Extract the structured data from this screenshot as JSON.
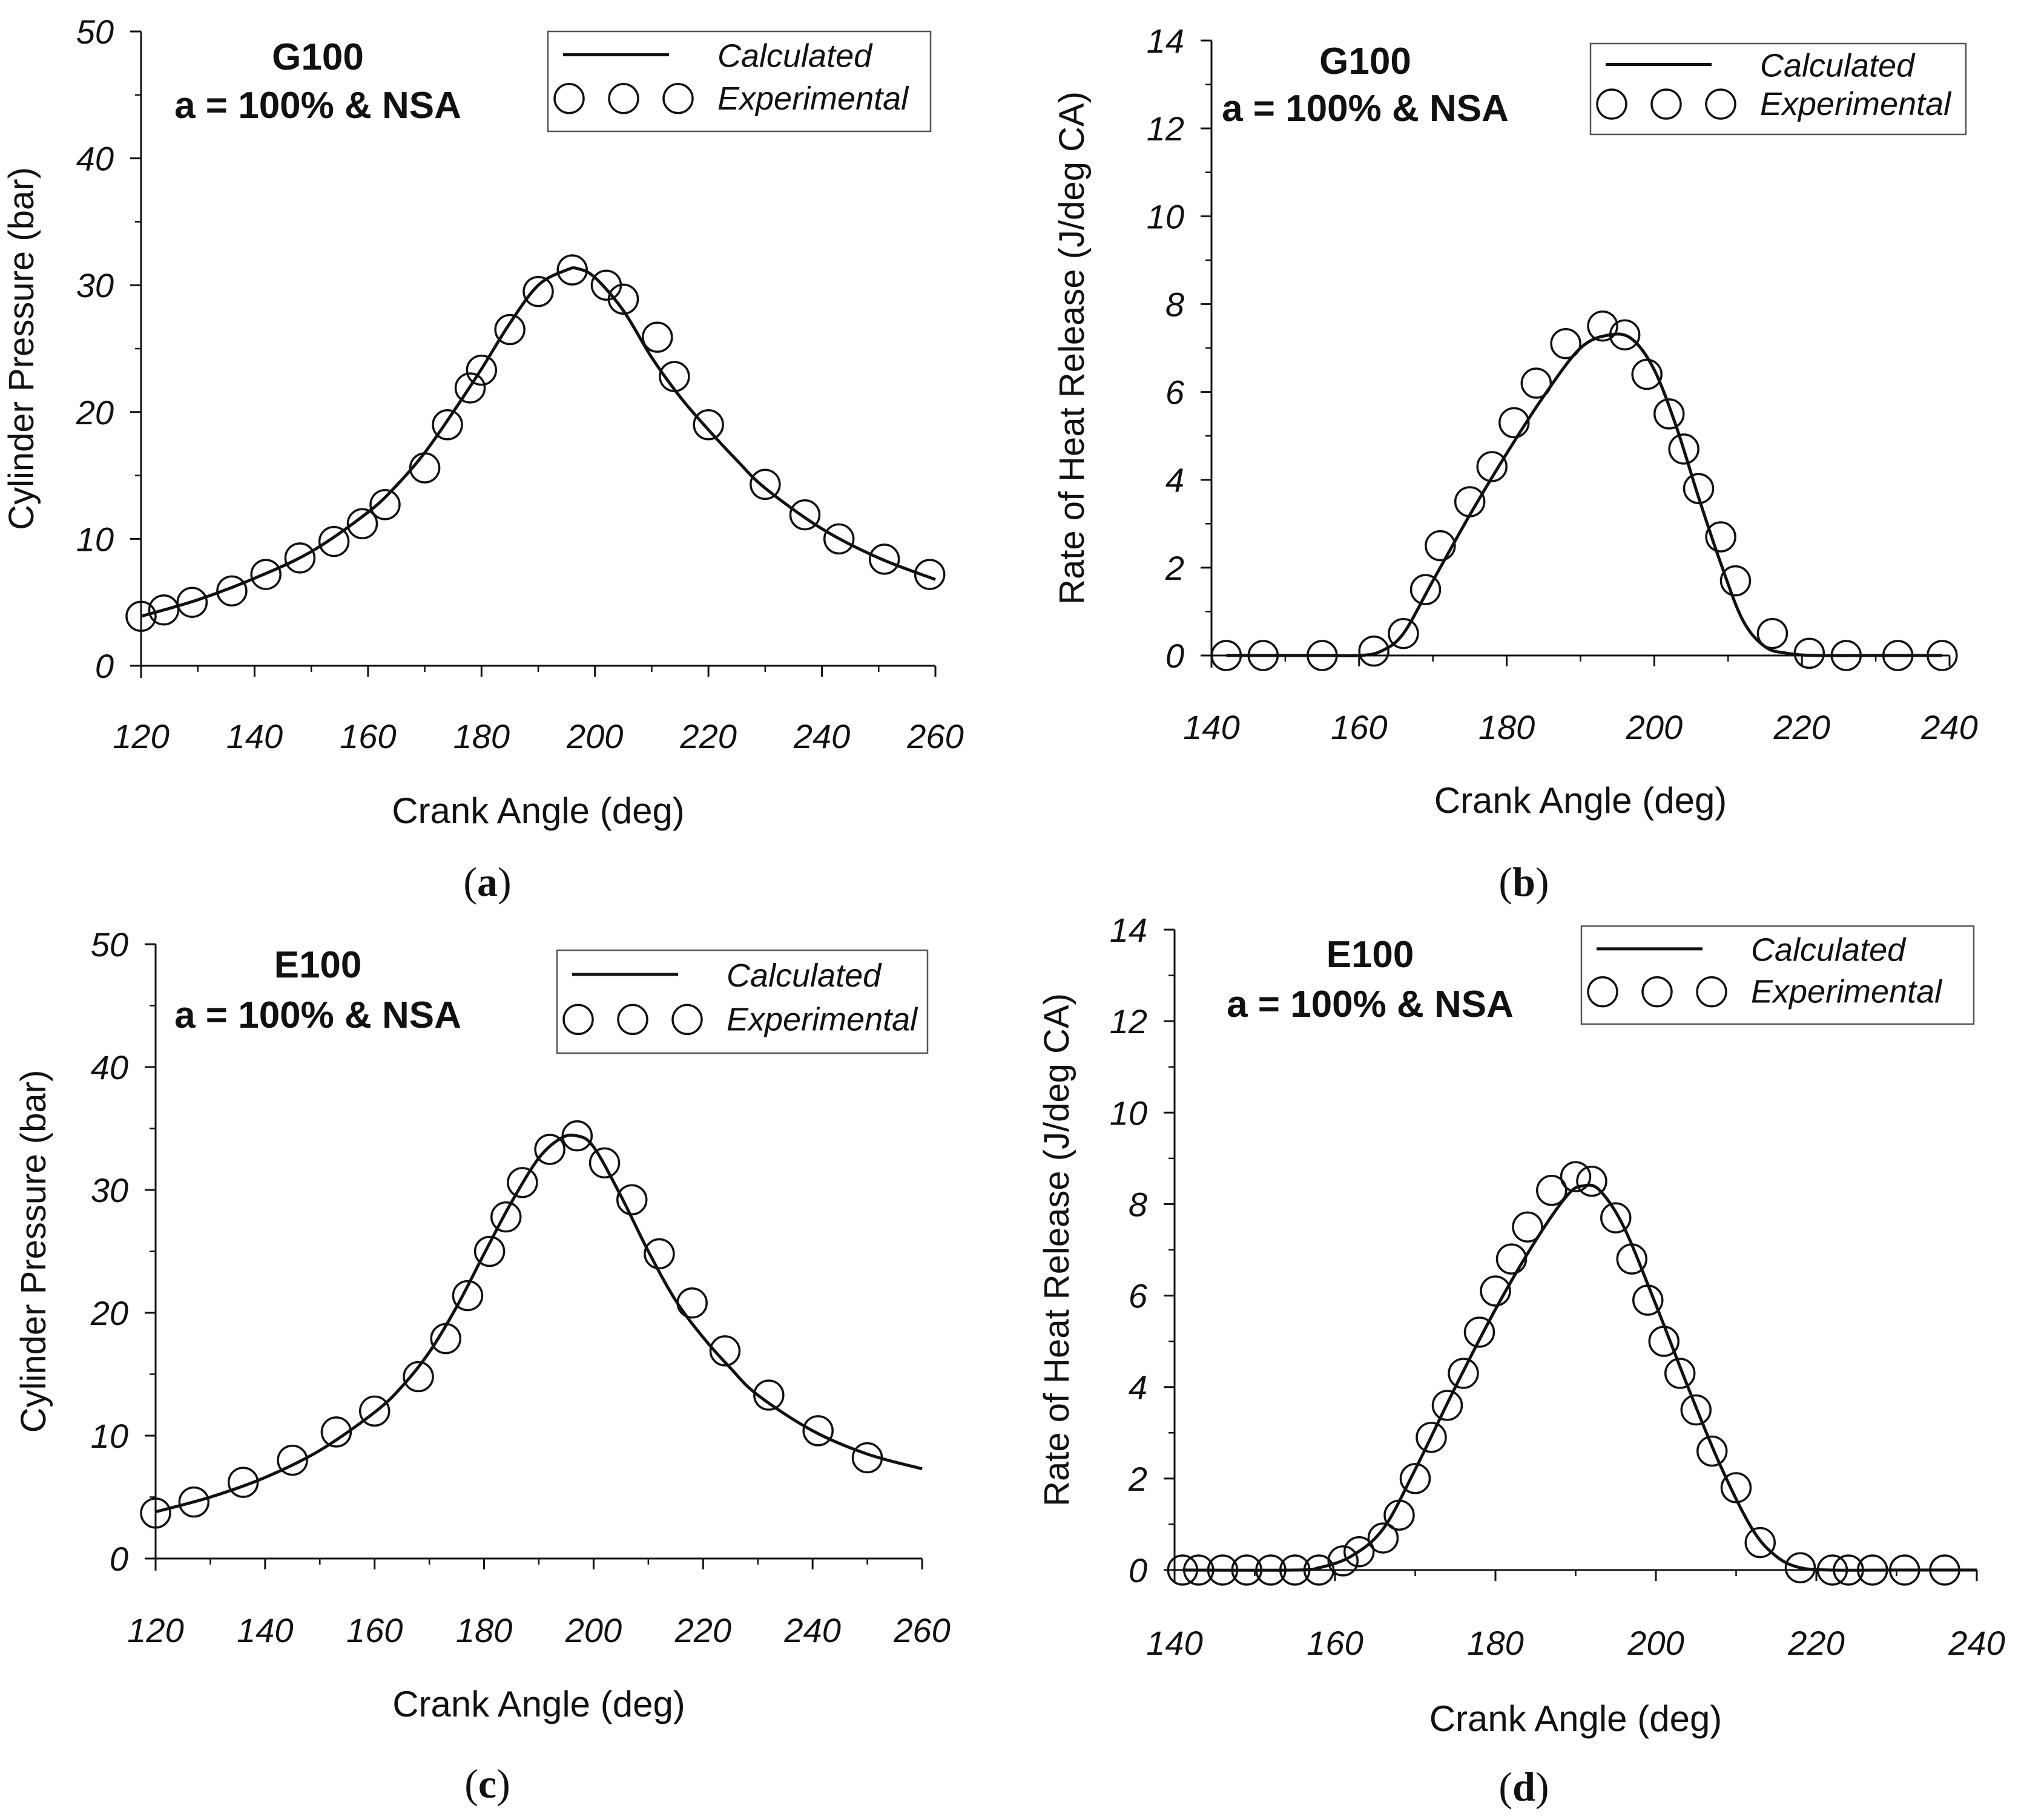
{
  "figure": {
    "panels": [
      {
        "id": "a",
        "caption_letter": "a"
      },
      {
        "id": "b",
        "caption_letter": "b"
      },
      {
        "id": "c",
        "caption_letter": "c"
      },
      {
        "id": "d",
        "caption_letter": "d"
      }
    ]
  },
  "chart_data": [
    {
      "panel": "a",
      "type": "line",
      "title": "",
      "annotation": {
        "line1": "G100",
        "line2": "a = 100% & NSA"
      },
      "xlabel": "Crank Angle (deg)",
      "ylabel": "Cylinder Pressure (bar)",
      "xlim": [
        120,
        260
      ],
      "ylim": [
        0,
        50
      ],
      "xticks": [
        120,
        140,
        160,
        180,
        200,
        220,
        240,
        260
      ],
      "yticks": [
        0,
        10,
        20,
        30,
        40,
        50
      ],
      "legend": {
        "position": "top-right",
        "calculated": "Calculated",
        "experimental": "Experimental"
      },
      "series": [
        {
          "name": "Calculated",
          "style": "line",
          "x": [
            120,
            130,
            140,
            150,
            160,
            165,
            170,
            175,
            180,
            185,
            190,
            195,
            197,
            200,
            205,
            210,
            215,
            220,
            225,
            230,
            240,
            250,
            260
          ],
          "y": [
            3.9,
            5.2,
            6.9,
            9.0,
            12.1,
            14.2,
            16.8,
            20.0,
            23.4,
            27.0,
            30.0,
            31.2,
            31.3,
            30.6,
            28.0,
            24.3,
            21.2,
            18.6,
            16.2,
            14.0,
            10.8,
            8.5,
            6.8
          ]
        },
        {
          "name": "Experimental",
          "style": "marker",
          "x": [
            120,
            124,
            129,
            136,
            142,
            148,
            154,
            159,
            163,
            170,
            174,
            178,
            180,
            185,
            190,
            196,
            202,
            205,
            211,
            214,
            220,
            230,
            237,
            243,
            251,
            259
          ],
          "y": [
            3.9,
            4.4,
            5.0,
            5.9,
            7.2,
            8.5,
            9.8,
            11.2,
            12.7,
            15.6,
            19.0,
            21.9,
            23.3,
            26.5,
            29.5,
            31.2,
            30.0,
            28.9,
            25.9,
            22.8,
            19.0,
            14.3,
            11.9,
            10.0,
            8.4,
            7.2
          ]
        }
      ]
    },
    {
      "panel": "b",
      "type": "line",
      "title": "",
      "annotation": {
        "line1": "G100",
        "line2": "a = 100% & NSA"
      },
      "xlabel": "Crank Angle (deg)",
      "ylabel": "Rate of Heat Release (J/deg CA)",
      "xlim": [
        140,
        240
      ],
      "ylim": [
        0,
        14
      ],
      "xticks": [
        140,
        160,
        180,
        200,
        220,
        240
      ],
      "yticks": [
        0,
        2,
        4,
        6,
        8,
        10,
        12,
        14
      ],
      "legend": {
        "position": "top-right",
        "calculated": "Calculated",
        "experimental": "Experimental"
      },
      "series": [
        {
          "name": "Calculated",
          "style": "line",
          "x": [
            142,
            155,
            160,
            163,
            166,
            170,
            175,
            180,
            185,
            190,
            194,
            197,
            200,
            203,
            206,
            209,
            212,
            215,
            218,
            222,
            230,
            239
          ],
          "y": [
            0,
            0,
            0,
            0.1,
            0.5,
            1.7,
            3.2,
            4.6,
            5.9,
            7.0,
            7.3,
            7.2,
            6.5,
            5.2,
            3.6,
            2.1,
            0.8,
            0.2,
            0.05,
            0,
            0,
            0
          ]
        },
        {
          "name": "Experimental",
          "style": "marker",
          "x": [
            142,
            147,
            155,
            162,
            166,
            169,
            171,
            175,
            178,
            181,
            184,
            188,
            193,
            196,
            199,
            202,
            204,
            206,
            209,
            211,
            216,
            221,
            226,
            233,
            239
          ],
          "y": [
            0,
            0,
            0,
            0.1,
            0.5,
            1.5,
            2.5,
            3.5,
            4.3,
            5.3,
            6.2,
            7.1,
            7.5,
            7.3,
            6.4,
            5.5,
            4.7,
            3.8,
            2.7,
            1.7,
            0.5,
            0.05,
            0,
            0,
            0
          ]
        }
      ]
    },
    {
      "panel": "c",
      "type": "line",
      "title": "",
      "annotation": {
        "line1": "E100",
        "line2": "a = 100% & NSA"
      },
      "xlabel": "Crank Angle (deg)",
      "ylabel": "Cylinder Pressure (bar)",
      "xlim": [
        120,
        260
      ],
      "ylim": [
        0,
        50
      ],
      "xticks": [
        120,
        140,
        160,
        180,
        200,
        220,
        240,
        260
      ],
      "yticks": [
        0,
        10,
        20,
        30,
        40,
        50
      ],
      "legend": {
        "position": "top-right",
        "calculated": "Calculated",
        "experimental": "Experimental"
      },
      "series": [
        {
          "name": "Calculated",
          "style": "line",
          "x": [
            120,
            130,
            140,
            150,
            160,
            165,
            170,
            175,
            180,
            185,
            190,
            194,
            197,
            200,
            205,
            210,
            215,
            220,
            225,
            230,
            240,
            250,
            260
          ],
          "y": [
            3.8,
            5.0,
            6.6,
            8.8,
            11.9,
            14.0,
            16.8,
            20.5,
            24.8,
            29.0,
            32.6,
            34.2,
            34.4,
            33.5,
            29.5,
            25.0,
            21.0,
            18.0,
            15.5,
            13.3,
            10.4,
            8.5,
            7.3
          ]
        },
        {
          "name": "Experimental",
          "style": "marker",
          "x": [
            120,
            127,
            136,
            145,
            153,
            160,
            168,
            173,
            177,
            181,
            184,
            187,
            192,
            197,
            202,
            207,
            212,
            218,
            224,
            232,
            241,
            250
          ],
          "y": [
            3.7,
            4.6,
            6.2,
            8.0,
            10.3,
            12.0,
            14.8,
            17.9,
            21.4,
            25.0,
            27.8,
            30.6,
            33.3,
            34.4,
            32.2,
            29.2,
            24.8,
            20.8,
            16.9,
            13.3,
            10.4,
            8.2
          ]
        }
      ]
    },
    {
      "panel": "d",
      "type": "line",
      "title": "",
      "annotation": {
        "line1": "E100",
        "line2": "a = 100% & NSA"
      },
      "xlabel": "Crank Angle (deg)",
      "ylabel": "Rate of Heat Release (J/deg CA)",
      "xlim": [
        140,
        240
      ],
      "ylim": [
        0,
        14
      ],
      "xticks": [
        140,
        160,
        180,
        200,
        220,
        240
      ],
      "yticks": [
        0,
        2,
        4,
        6,
        8,
        10,
        12,
        14
      ],
      "legend": {
        "position": "top-right",
        "calculated": "Calculated",
        "experimental": "Experimental"
      },
      "series": [
        {
          "name": "Calculated",
          "style": "line",
          "x": [
            141,
            155,
            158,
            162,
            166,
            170,
            175,
            180,
            185,
            189,
            191,
            193,
            196,
            200,
            204,
            208,
            212,
            215,
            218,
            222,
            230,
            240
          ],
          "y": [
            0,
            0,
            0.05,
            0.3,
            0.9,
            2.2,
            4.0,
            5.7,
            7.2,
            8.2,
            8.4,
            8.3,
            7.5,
            5.8,
            4.0,
            2.3,
            0.9,
            0.3,
            0.05,
            0,
            0,
            0
          ]
        },
        {
          "name": "Experimental",
          "style": "marker",
          "x": [
            141,
            143,
            146,
            149,
            152,
            155,
            158,
            161,
            163,
            166,
            168,
            170,
            172,
            174,
            176,
            178,
            180,
            182,
            184,
            187,
            190,
            192,
            195,
            197,
            199,
            201,
            203,
            205,
            207,
            210,
            213,
            218,
            222,
            224,
            227,
            231,
            236
          ],
          "y": [
            0,
            0,
            0,
            0,
            0,
            0,
            0,
            0.2,
            0.4,
            0.7,
            1.2,
            2.0,
            2.9,
            3.6,
            4.3,
            5.2,
            6.1,
            6.8,
            7.5,
            8.3,
            8.6,
            8.5,
            7.7,
            6.8,
            5.9,
            5.0,
            4.3,
            3.5,
            2.6,
            1.8,
            0.6,
            0.05,
            0,
            0,
            0,
            0,
            0
          ]
        }
      ]
    }
  ]
}
